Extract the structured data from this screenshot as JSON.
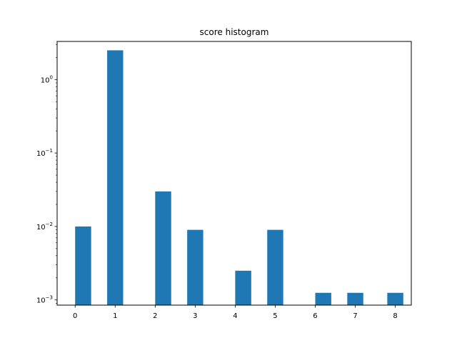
{
  "chart_data": {
    "type": "bar",
    "title": "score histogram",
    "xlabel": "",
    "ylabel": "",
    "yscale": "log",
    "ylim": [
      0.00085,
      3.3
    ],
    "xlim": [
      -0.45,
      8.4
    ],
    "grid": false,
    "bar_color": "#1f77b4",
    "x": [
      0.2,
      1.0,
      2.2,
      3.0,
      4.2,
      5.0,
      6.2,
      7.0,
      8.0
    ],
    "values": [
      0.01,
      2.5,
      0.03,
      0.009,
      0.0025,
      0.009,
      0.00125,
      0.00125,
      0.00125
    ],
    "bar_width": 0.4,
    "xticks": [
      0,
      1,
      2,
      3,
      4,
      5,
      6,
      7,
      8
    ],
    "xtick_labels": [
      "0",
      "1",
      "2",
      "3",
      "4",
      "5",
      "6",
      "7",
      "8"
    ],
    "yticks": [
      0.001,
      0.01,
      0.1,
      1
    ],
    "ytick_labels": [
      {
        "base": "10",
        "exp": "−3"
      },
      {
        "base": "10",
        "exp": "−2"
      },
      {
        "base": "10",
        "exp": "−1"
      },
      {
        "base": "10",
        "exp": "0"
      }
    ]
  }
}
